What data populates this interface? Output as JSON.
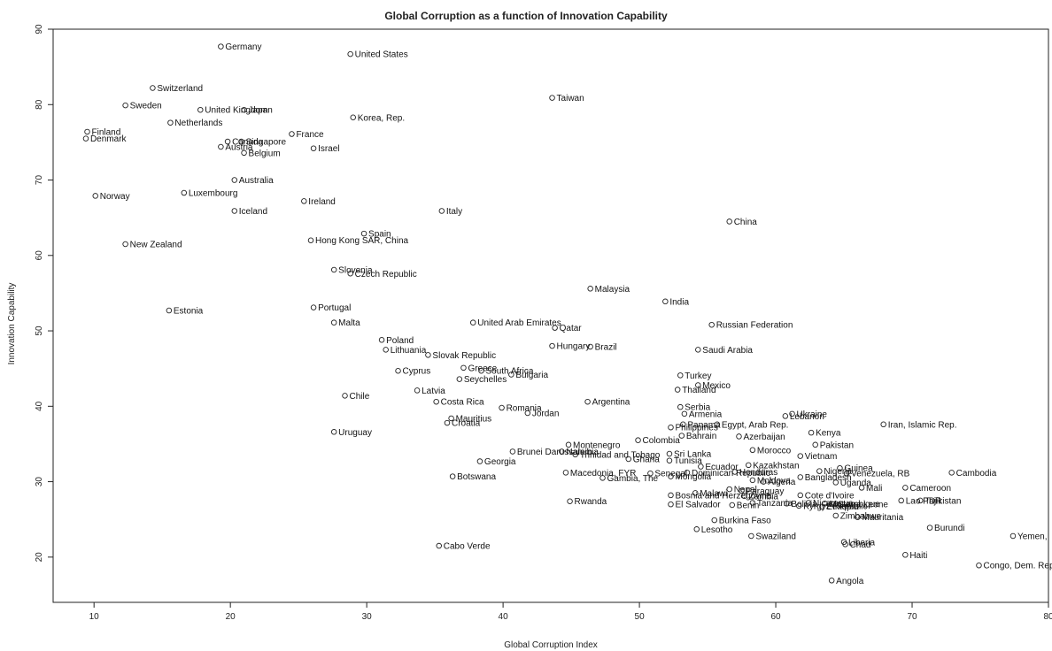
{
  "chart_data": {
    "type": "scatter",
    "title": "Global Corruption as a function of Innovation Capability",
    "xlabel": "Global Corruption Index",
    "ylabel": "Innovation Capability",
    "xlim": [
      7,
      80
    ],
    "ylim": [
      14,
      90
    ],
    "xticks": [
      10,
      20,
      30,
      40,
      50,
      60,
      70,
      80
    ],
    "yticks": [
      20,
      30,
      40,
      50,
      60,
      70,
      80,
      90
    ],
    "grid": false,
    "points": [
      {
        "label": "Germany",
        "x": 19.3,
        "y": 87.7
      },
      {
        "label": "United States",
        "x": 28.8,
        "y": 86.7
      },
      {
        "label": "Switzerland",
        "x": 14.3,
        "y": 82.2
      },
      {
        "label": "Sweden",
        "x": 12.3,
        "y": 79.9
      },
      {
        "label": "United Kingdom",
        "x": 17.8,
        "y": 79.3
      },
      {
        "label": "Japan",
        "x": 21.0,
        "y": 79.3
      },
      {
        "label": "Taiwan",
        "x": 43.6,
        "y": 80.9
      },
      {
        "label": "Netherlands",
        "x": 15.6,
        "y": 77.6
      },
      {
        "label": "Korea, Rep.",
        "x": 29.0,
        "y": 78.3
      },
      {
        "label": "Finland",
        "x": 9.5,
        "y": 76.4
      },
      {
        "label": "Denmark",
        "x": 9.4,
        "y": 75.5
      },
      {
        "label": "France",
        "x": 24.5,
        "y": 76.1
      },
      {
        "label": "Canada",
        "x": 19.8,
        "y": 75.1
      },
      {
        "label": "Singapore",
        "x": 20.8,
        "y": 75.1
      },
      {
        "label": "Austria",
        "x": 19.3,
        "y": 74.4
      },
      {
        "label": "Belgium",
        "x": 21.0,
        "y": 73.6
      },
      {
        "label": "Israel",
        "x": 26.1,
        "y": 74.2
      },
      {
        "label": "Australia",
        "x": 20.3,
        "y": 70.0
      },
      {
        "label": "Norway",
        "x": 10.1,
        "y": 67.9
      },
      {
        "label": "Luxembourg",
        "x": 16.6,
        "y": 68.3
      },
      {
        "label": "Iceland",
        "x": 20.3,
        "y": 65.9
      },
      {
        "label": "Ireland",
        "x": 25.4,
        "y": 67.2
      },
      {
        "label": "Italy",
        "x": 35.5,
        "y": 65.9
      },
      {
        "label": "China",
        "x": 56.6,
        "y": 64.5
      },
      {
        "label": "Spain",
        "x": 29.8,
        "y": 62.9
      },
      {
        "label": "Hong Kong SAR, China",
        "x": 25.9,
        "y": 62.0
      },
      {
        "label": "New Zealand",
        "x": 12.3,
        "y": 61.5
      },
      {
        "label": "Slovenia",
        "x": 27.6,
        "y": 58.1
      },
      {
        "label": "Czech Republic",
        "x": 28.8,
        "y": 57.6
      },
      {
        "label": "Malaysia",
        "x": 46.4,
        "y": 55.6
      },
      {
        "label": "India",
        "x": 51.9,
        "y": 53.9
      },
      {
        "label": "Portugal",
        "x": 26.1,
        "y": 53.1
      },
      {
        "label": "Estonia",
        "x": 15.5,
        "y": 52.7
      },
      {
        "label": "Malta",
        "x": 27.6,
        "y": 51.1
      },
      {
        "label": "United Arab Emirates",
        "x": 37.8,
        "y": 51.1
      },
      {
        "label": "Qatar",
        "x": 43.8,
        "y": 50.4
      },
      {
        "label": "Russian Federation",
        "x": 55.3,
        "y": 50.8
      },
      {
        "label": "Poland",
        "x": 31.1,
        "y": 48.8
      },
      {
        "label": "Hungary",
        "x": 43.6,
        "y": 48.0
      },
      {
        "label": "Brazil",
        "x": 46.4,
        "y": 47.9
      },
      {
        "label": "Saudi Arabia",
        "x": 54.3,
        "y": 47.5
      },
      {
        "label": "Lithuania",
        "x": 31.4,
        "y": 47.5
      },
      {
        "label": "Slovak Republic",
        "x": 34.5,
        "y": 46.8
      },
      {
        "label": "Cyprus",
        "x": 32.3,
        "y": 44.7
      },
      {
        "label": "Greece",
        "x": 37.1,
        "y": 45.1
      },
      {
        "label": "South Africa",
        "x": 38.4,
        "y": 44.7
      },
      {
        "label": "Bulgaria",
        "x": 40.6,
        "y": 44.2
      },
      {
        "label": "Seychelles",
        "x": 36.8,
        "y": 43.6
      },
      {
        "label": "Turkey",
        "x": 53.0,
        "y": 44.1
      },
      {
        "label": "Mexico",
        "x": 54.3,
        "y": 42.8
      },
      {
        "label": "Thailand",
        "x": 52.8,
        "y": 42.2
      },
      {
        "label": "Latvia",
        "x": 33.7,
        "y": 42.1
      },
      {
        "label": "Chile",
        "x": 28.4,
        "y": 41.4
      },
      {
        "label": "Costa Rica",
        "x": 35.1,
        "y": 40.6
      },
      {
        "label": "Argentina",
        "x": 46.2,
        "y": 40.6
      },
      {
        "label": "Romania",
        "x": 39.9,
        "y": 39.8
      },
      {
        "label": "Jordan",
        "x": 41.8,
        "y": 39.1
      },
      {
        "label": "Serbia",
        "x": 53.0,
        "y": 39.9
      },
      {
        "label": "Armenia",
        "x": 53.3,
        "y": 39.0
      },
      {
        "label": "Ukraine",
        "x": 61.2,
        "y": 39.0
      },
      {
        "label": "Lebanon",
        "x": 60.7,
        "y": 38.7
      },
      {
        "label": "Mauritius",
        "x": 36.2,
        "y": 38.4
      },
      {
        "label": "Croatia",
        "x": 35.9,
        "y": 37.8
      },
      {
        "label": "Panama",
        "x": 53.2,
        "y": 37.6
      },
      {
        "label": "Egypt, Arab Rep.",
        "x": 55.7,
        "y": 37.6
      },
      {
        "label": "Philippines",
        "x": 52.3,
        "y": 37.2
      },
      {
        "label": "Iran, Islamic Rep.",
        "x": 67.9,
        "y": 37.6
      },
      {
        "label": "Kenya",
        "x": 62.6,
        "y": 36.5
      },
      {
        "label": "Uruguay",
        "x": 27.6,
        "y": 36.6
      },
      {
        "label": "Bahrain",
        "x": 53.1,
        "y": 36.1
      },
      {
        "label": "Azerbaijan",
        "x": 57.3,
        "y": 36.0
      },
      {
        "label": "Colombia",
        "x": 49.9,
        "y": 35.5
      },
      {
        "label": "Pakistan",
        "x": 62.9,
        "y": 34.9
      },
      {
        "label": "Montenegro",
        "x": 44.8,
        "y": 34.9
      },
      {
        "label": "Morocco",
        "x": 58.3,
        "y": 34.2
      },
      {
        "label": "Brunei Darussalam",
        "x": 40.7,
        "y": 34.0
      },
      {
        "label": "Namibia",
        "x": 44.3,
        "y": 34.0
      },
      {
        "label": "Trinidad and Tobago",
        "x": 45.3,
        "y": 33.6
      },
      {
        "label": "Sri Lanka",
        "x": 52.2,
        "y": 33.7
      },
      {
        "label": "Vietnam",
        "x": 61.8,
        "y": 33.4
      },
      {
        "label": "Ghana",
        "x": 49.2,
        "y": 33.0
      },
      {
        "label": "Tunisia",
        "x": 52.2,
        "y": 32.8
      },
      {
        "label": "Georgia",
        "x": 38.3,
        "y": 32.7
      },
      {
        "label": "Kazakhstan",
        "x": 58.0,
        "y": 32.2
      },
      {
        "label": "Ecuador",
        "x": 54.5,
        "y": 32.0
      },
      {
        "label": "Guinea",
        "x": 64.7,
        "y": 31.8
      },
      {
        "label": "Nigeria",
        "x": 63.2,
        "y": 31.4
      },
      {
        "label": "Venezuela, RB",
        "x": 65.2,
        "y": 31.1
      },
      {
        "label": "Cambodia",
        "x": 72.9,
        "y": 31.2
      },
      {
        "label": "Macedonia, FYR",
        "x": 44.6,
        "y": 31.2
      },
      {
        "label": "Senegal",
        "x": 50.8,
        "y": 31.1
      },
      {
        "label": "Dominican Republic",
        "x": 53.5,
        "y": 31.2
      },
      {
        "label": "Honduras",
        "x": 57.0,
        "y": 31.3
      },
      {
        "label": "Bangladesh",
        "x": 61.8,
        "y": 30.6
      },
      {
        "label": "Mongolia",
        "x": 52.3,
        "y": 30.7
      },
      {
        "label": "Botswana",
        "x": 36.3,
        "y": 30.7
      },
      {
        "label": "Gambia, The",
        "x": 47.3,
        "y": 30.5
      },
      {
        "label": "Moldova",
        "x": 58.3,
        "y": 30.2
      },
      {
        "label": "Algeria",
        "x": 59.1,
        "y": 30.0
      },
      {
        "label": "Uganda",
        "x": 64.4,
        "y": 29.9
      },
      {
        "label": "Mali",
        "x": 66.3,
        "y": 29.2
      },
      {
        "label": "Cameroon",
        "x": 69.5,
        "y": 29.2
      },
      {
        "label": "Nepal",
        "x": 56.6,
        "y": 29.0
      },
      {
        "label": "Paraguay",
        "x": 57.5,
        "y": 28.8
      },
      {
        "label": "Malawi",
        "x": 54.1,
        "y": 28.5
      },
      {
        "label": "Bosnia and Herzegovina",
        "x": 52.3,
        "y": 28.2
      },
      {
        "label": "Zambia",
        "x": 57.7,
        "y": 28.1
      },
      {
        "label": "Cote d'Ivoire",
        "x": 61.8,
        "y": 28.2
      },
      {
        "label": "Lao PDR",
        "x": 69.2,
        "y": 27.5
      },
      {
        "label": "Tajikistan",
        "x": 70.6,
        "y": 27.5
      },
      {
        "label": "Rwanda",
        "x": 44.9,
        "y": 27.4
      },
      {
        "label": "El Salvador",
        "x": 52.3,
        "y": 27.0
      },
      {
        "label": "Benin",
        "x": 56.8,
        "y": 26.9
      },
      {
        "label": "Tanzania",
        "x": 58.3,
        "y": 27.2
      },
      {
        "label": "Bolivia",
        "x": 60.8,
        "y": 27.1
      },
      {
        "label": "Kyrgyz Republic",
        "x": 61.7,
        "y": 26.8
      },
      {
        "label": "Nicaragua",
        "x": 62.4,
        "y": 27.2
      },
      {
        "label": "Mozambique",
        "x": 63.6,
        "y": 27.1
      },
      {
        "label": "Ethiopia",
        "x": 63.4,
        "y": 26.7
      },
      {
        "label": "Sierra Leone",
        "x": 64.2,
        "y": 27.0
      },
      {
        "label": "Zimbabwe",
        "x": 64.4,
        "y": 25.5
      },
      {
        "label": "Mauritania",
        "x": 66.0,
        "y": 25.3
      },
      {
        "label": "Burkina Faso",
        "x": 55.5,
        "y": 24.9
      },
      {
        "label": "Burundi",
        "x": 71.3,
        "y": 23.9
      },
      {
        "label": "Lesotho",
        "x": 54.2,
        "y": 23.7
      },
      {
        "label": "Swaziland",
        "x": 58.2,
        "y": 22.8
      },
      {
        "label": "Yemen,",
        "x": 77.4,
        "y": 22.8
      },
      {
        "label": "Liberia",
        "x": 65.0,
        "y": 22.0
      },
      {
        "label": "Chad",
        "x": 65.1,
        "y": 21.7
      },
      {
        "label": "Cabo Verde",
        "x": 35.3,
        "y": 21.5
      },
      {
        "label": "Haiti",
        "x": 69.5,
        "y": 20.3
      },
      {
        "label": "Congo, Dem. Rep.",
        "x": 74.9,
        "y": 18.9
      },
      {
        "label": "Angola",
        "x": 64.1,
        "y": 16.9
      }
    ]
  }
}
